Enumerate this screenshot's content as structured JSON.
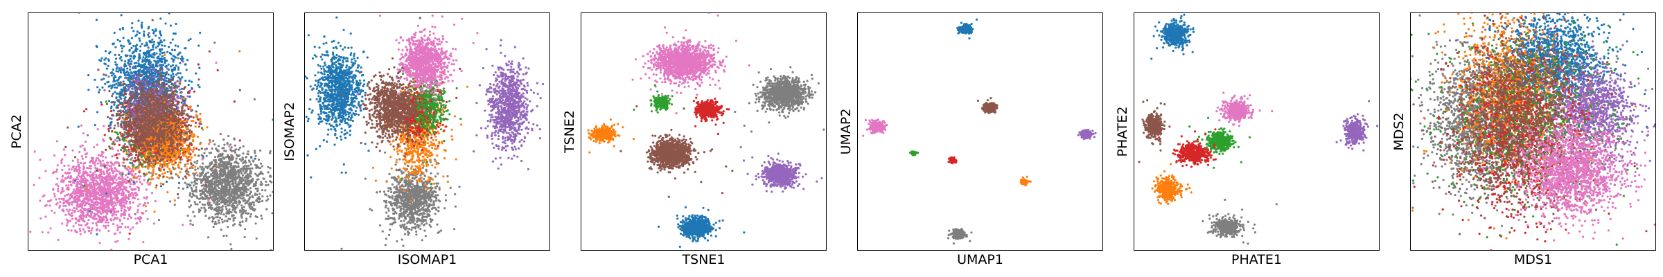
{
  "figure": {
    "colors": {
      "blue": "#1f77b4",
      "orange": "#ff7f0e",
      "green": "#2ca02c",
      "red": "#d62728",
      "purple": "#9467bd",
      "brown": "#8c564b",
      "pink": "#e377c2",
      "gray": "#7f7f7f"
    },
    "point_color": "#1f77b4"
  },
  "chart_data": [
    {
      "type": "scatter",
      "xlabel": "PCA1",
      "ylabel": "PCA2",
      "title": "",
      "xlim": [
        0,
        10
      ],
      "ylim": [
        0,
        10
      ],
      "ticks": "none",
      "grid": false,
      "clusters": [
        {
          "color": "gray",
          "x": 8.1,
          "y": 2.8,
          "sx": 0.75,
          "sy": 0.75,
          "n": 1300
        },
        {
          "color": "pink",
          "x": 2.9,
          "y": 2.4,
          "sx": 0.85,
          "sy": 0.75,
          "n": 1400
        },
        {
          "color": "blue",
          "x": 4.8,
          "y": 7.0,
          "sx": 0.75,
          "sy": 1.05,
          "n": 1300
        },
        {
          "color": "green",
          "x": 5.0,
          "y": 4.7,
          "sx": 0.6,
          "sy": 0.65,
          "n": 420
        },
        {
          "color": "red",
          "x": 5.2,
          "y": 5.0,
          "sx": 0.65,
          "sy": 0.6,
          "n": 700
        },
        {
          "color": "purple",
          "x": 5.0,
          "y": 5.9,
          "sx": 0.6,
          "sy": 0.7,
          "n": 650
        },
        {
          "color": "orange",
          "x": 5.6,
          "y": 4.6,
          "sx": 0.6,
          "sy": 0.65,
          "n": 850
        },
        {
          "color": "brown",
          "x": 5.1,
          "y": 5.4,
          "sx": 0.7,
          "sy": 0.85,
          "n": 1100
        }
      ]
    },
    {
      "type": "scatter",
      "xlabel": "ISOMAP1",
      "ylabel": "ISOMAP2",
      "title": "",
      "xlim": [
        0,
        10
      ],
      "ylim": [
        0,
        10
      ],
      "ticks": "none",
      "grid": false,
      "clusters": [
        {
          "color": "blue",
          "x": 1.4,
          "y": 6.7,
          "sx": 0.45,
          "sy": 0.8,
          "n": 1000
        },
        {
          "color": "gray",
          "x": 4.4,
          "y": 2.1,
          "sx": 0.5,
          "sy": 0.6,
          "n": 900
        },
        {
          "color": "purple",
          "x": 8.3,
          "y": 6.0,
          "sx": 0.4,
          "sy": 0.85,
          "n": 900
        },
        {
          "color": "orange",
          "x": 4.6,
          "y": 4.9,
          "sx": 0.45,
          "sy": 0.9,
          "n": 700
        },
        {
          "color": "red",
          "x": 4.6,
          "y": 5.9,
          "sx": 0.4,
          "sy": 0.5,
          "n": 500
        },
        {
          "color": "green",
          "x": 5.1,
          "y": 6.1,
          "sx": 0.35,
          "sy": 0.55,
          "n": 350
        },
        {
          "color": "brown",
          "x": 3.6,
          "y": 6.0,
          "sx": 0.45,
          "sy": 0.6,
          "n": 1000
        },
        {
          "color": "pink",
          "x": 4.9,
          "y": 7.9,
          "sx": 0.45,
          "sy": 0.55,
          "n": 1000
        }
      ]
    },
    {
      "type": "scatter",
      "xlabel": "TSNE1",
      "ylabel": "TSNE2",
      "title": "",
      "xlim": [
        0,
        10
      ],
      "ylim": [
        0,
        10
      ],
      "ticks": "none",
      "grid": false,
      "clusters": [
        {
          "color": "pink",
          "x": 4.2,
          "y": 7.9,
          "sx": 0.6,
          "sy": 0.35,
          "n": 1400
        },
        {
          "color": "gray",
          "x": 8.3,
          "y": 6.6,
          "sx": 0.42,
          "sy": 0.3,
          "n": 1100
        },
        {
          "color": "green",
          "x": 3.3,
          "y": 6.2,
          "sx": 0.15,
          "sy": 0.14,
          "n": 200
        },
        {
          "color": "red",
          "x": 5.2,
          "y": 5.9,
          "sx": 0.25,
          "sy": 0.18,
          "n": 400
        },
        {
          "color": "orange",
          "x": 0.9,
          "y": 4.9,
          "sx": 0.22,
          "sy": 0.14,
          "n": 300
        },
        {
          "color": "brown",
          "x": 3.7,
          "y": 4.1,
          "sx": 0.38,
          "sy": 0.28,
          "n": 1100
        },
        {
          "color": "purple",
          "x": 8.1,
          "y": 3.2,
          "sx": 0.32,
          "sy": 0.22,
          "n": 800
        },
        {
          "color": "blue",
          "x": 4.7,
          "y": 1.0,
          "sx": 0.28,
          "sy": 0.2,
          "n": 700
        }
      ]
    },
    {
      "type": "scatter",
      "xlabel": "UMAP1",
      "ylabel": "UMAP2",
      "title": "",
      "xlim": [
        0,
        10
      ],
      "ylim": [
        0,
        10
      ],
      "ticks": "none",
      "grid": false,
      "clusters": [
        {
          "color": "blue",
          "x": 4.4,
          "y": 9.3,
          "sx": 0.12,
          "sy": 0.08,
          "n": 300
        },
        {
          "color": "pink",
          "x": 0.8,
          "y": 5.2,
          "sx": 0.15,
          "sy": 0.1,
          "n": 300
        },
        {
          "color": "brown",
          "x": 5.4,
          "y": 6.0,
          "sx": 0.12,
          "sy": 0.08,
          "n": 300
        },
        {
          "color": "purple",
          "x": 9.3,
          "y": 4.9,
          "sx": 0.1,
          "sy": 0.07,
          "n": 250
        },
        {
          "color": "green",
          "x": 2.3,
          "y": 4.1,
          "sx": 0.05,
          "sy": 0.04,
          "n": 60
        },
        {
          "color": "red",
          "x": 3.9,
          "y": 3.8,
          "sx": 0.07,
          "sy": 0.05,
          "n": 120
        },
        {
          "color": "orange",
          "x": 6.8,
          "y": 2.9,
          "sx": 0.06,
          "sy": 0.05,
          "n": 100
        },
        {
          "color": "gray",
          "x": 4.1,
          "y": 0.7,
          "sx": 0.12,
          "sy": 0.08,
          "n": 300
        }
      ]
    },
    {
      "type": "scatter",
      "xlabel": "PHATE1",
      "ylabel": "PHATE2",
      "title": "",
      "xlim": [
        0,
        10
      ],
      "ylim": [
        0,
        10
      ],
      "ticks": "none",
      "grid": false,
      "clusters": [
        {
          "color": "blue",
          "x": 1.7,
          "y": 9.1,
          "sx": 0.25,
          "sy": 0.25,
          "n": 500
        },
        {
          "color": "brown",
          "x": 0.8,
          "y": 5.2,
          "sx": 0.18,
          "sy": 0.25,
          "n": 350
        },
        {
          "color": "pink",
          "x": 4.2,
          "y": 5.9,
          "sx": 0.25,
          "sy": 0.2,
          "n": 450
        },
        {
          "color": "purple",
          "x": 9.0,
          "y": 5.0,
          "sx": 0.2,
          "sy": 0.25,
          "n": 400
        },
        {
          "color": "green",
          "x": 3.5,
          "y": 4.6,
          "sx": 0.25,
          "sy": 0.2,
          "n": 400
        },
        {
          "color": "red",
          "x": 2.4,
          "y": 4.1,
          "sx": 0.3,
          "sy": 0.2,
          "n": 450
        },
        {
          "color": "orange",
          "x": 1.4,
          "y": 2.6,
          "sx": 0.22,
          "sy": 0.22,
          "n": 400
        },
        {
          "color": "gray",
          "x": 3.8,
          "y": 1.0,
          "sx": 0.28,
          "sy": 0.18,
          "n": 400
        }
      ]
    },
    {
      "type": "scatter",
      "xlabel": "MDS1",
      "ylabel": "MDS2",
      "title": "",
      "xlim": [
        0,
        10
      ],
      "ylim": [
        0,
        10
      ],
      "ticks": "none",
      "grid": false,
      "clusters": [
        {
          "color": "gray",
          "x": 2.7,
          "y": 5.5,
          "sx": 0.9,
          "sy": 1.4,
          "n": 1600
        },
        {
          "color": "blue",
          "x": 5.8,
          "y": 8.0,
          "sx": 1.0,
          "sy": 0.9,
          "n": 1500
        },
        {
          "color": "purple",
          "x": 7.3,
          "y": 6.0,
          "sx": 0.9,
          "sy": 0.9,
          "n": 1200
        },
        {
          "color": "orange",
          "x": 4.0,
          "y": 6.6,
          "sx": 1.0,
          "sy": 1.5,
          "n": 1200
        },
        {
          "color": "red",
          "x": 4.5,
          "y": 5.0,
          "sx": 1.2,
          "sy": 1.6,
          "n": 1200
        },
        {
          "color": "green",
          "x": 5.0,
          "y": 5.5,
          "sx": 1.6,
          "sy": 1.7,
          "n": 700
        },
        {
          "color": "brown",
          "x": 4.4,
          "y": 5.4,
          "sx": 1.1,
          "sy": 1.7,
          "n": 1300
        },
        {
          "color": "pink",
          "x": 6.6,
          "y": 3.4,
          "sx": 1.0,
          "sy": 0.95,
          "n": 1700
        }
      ]
    }
  ]
}
